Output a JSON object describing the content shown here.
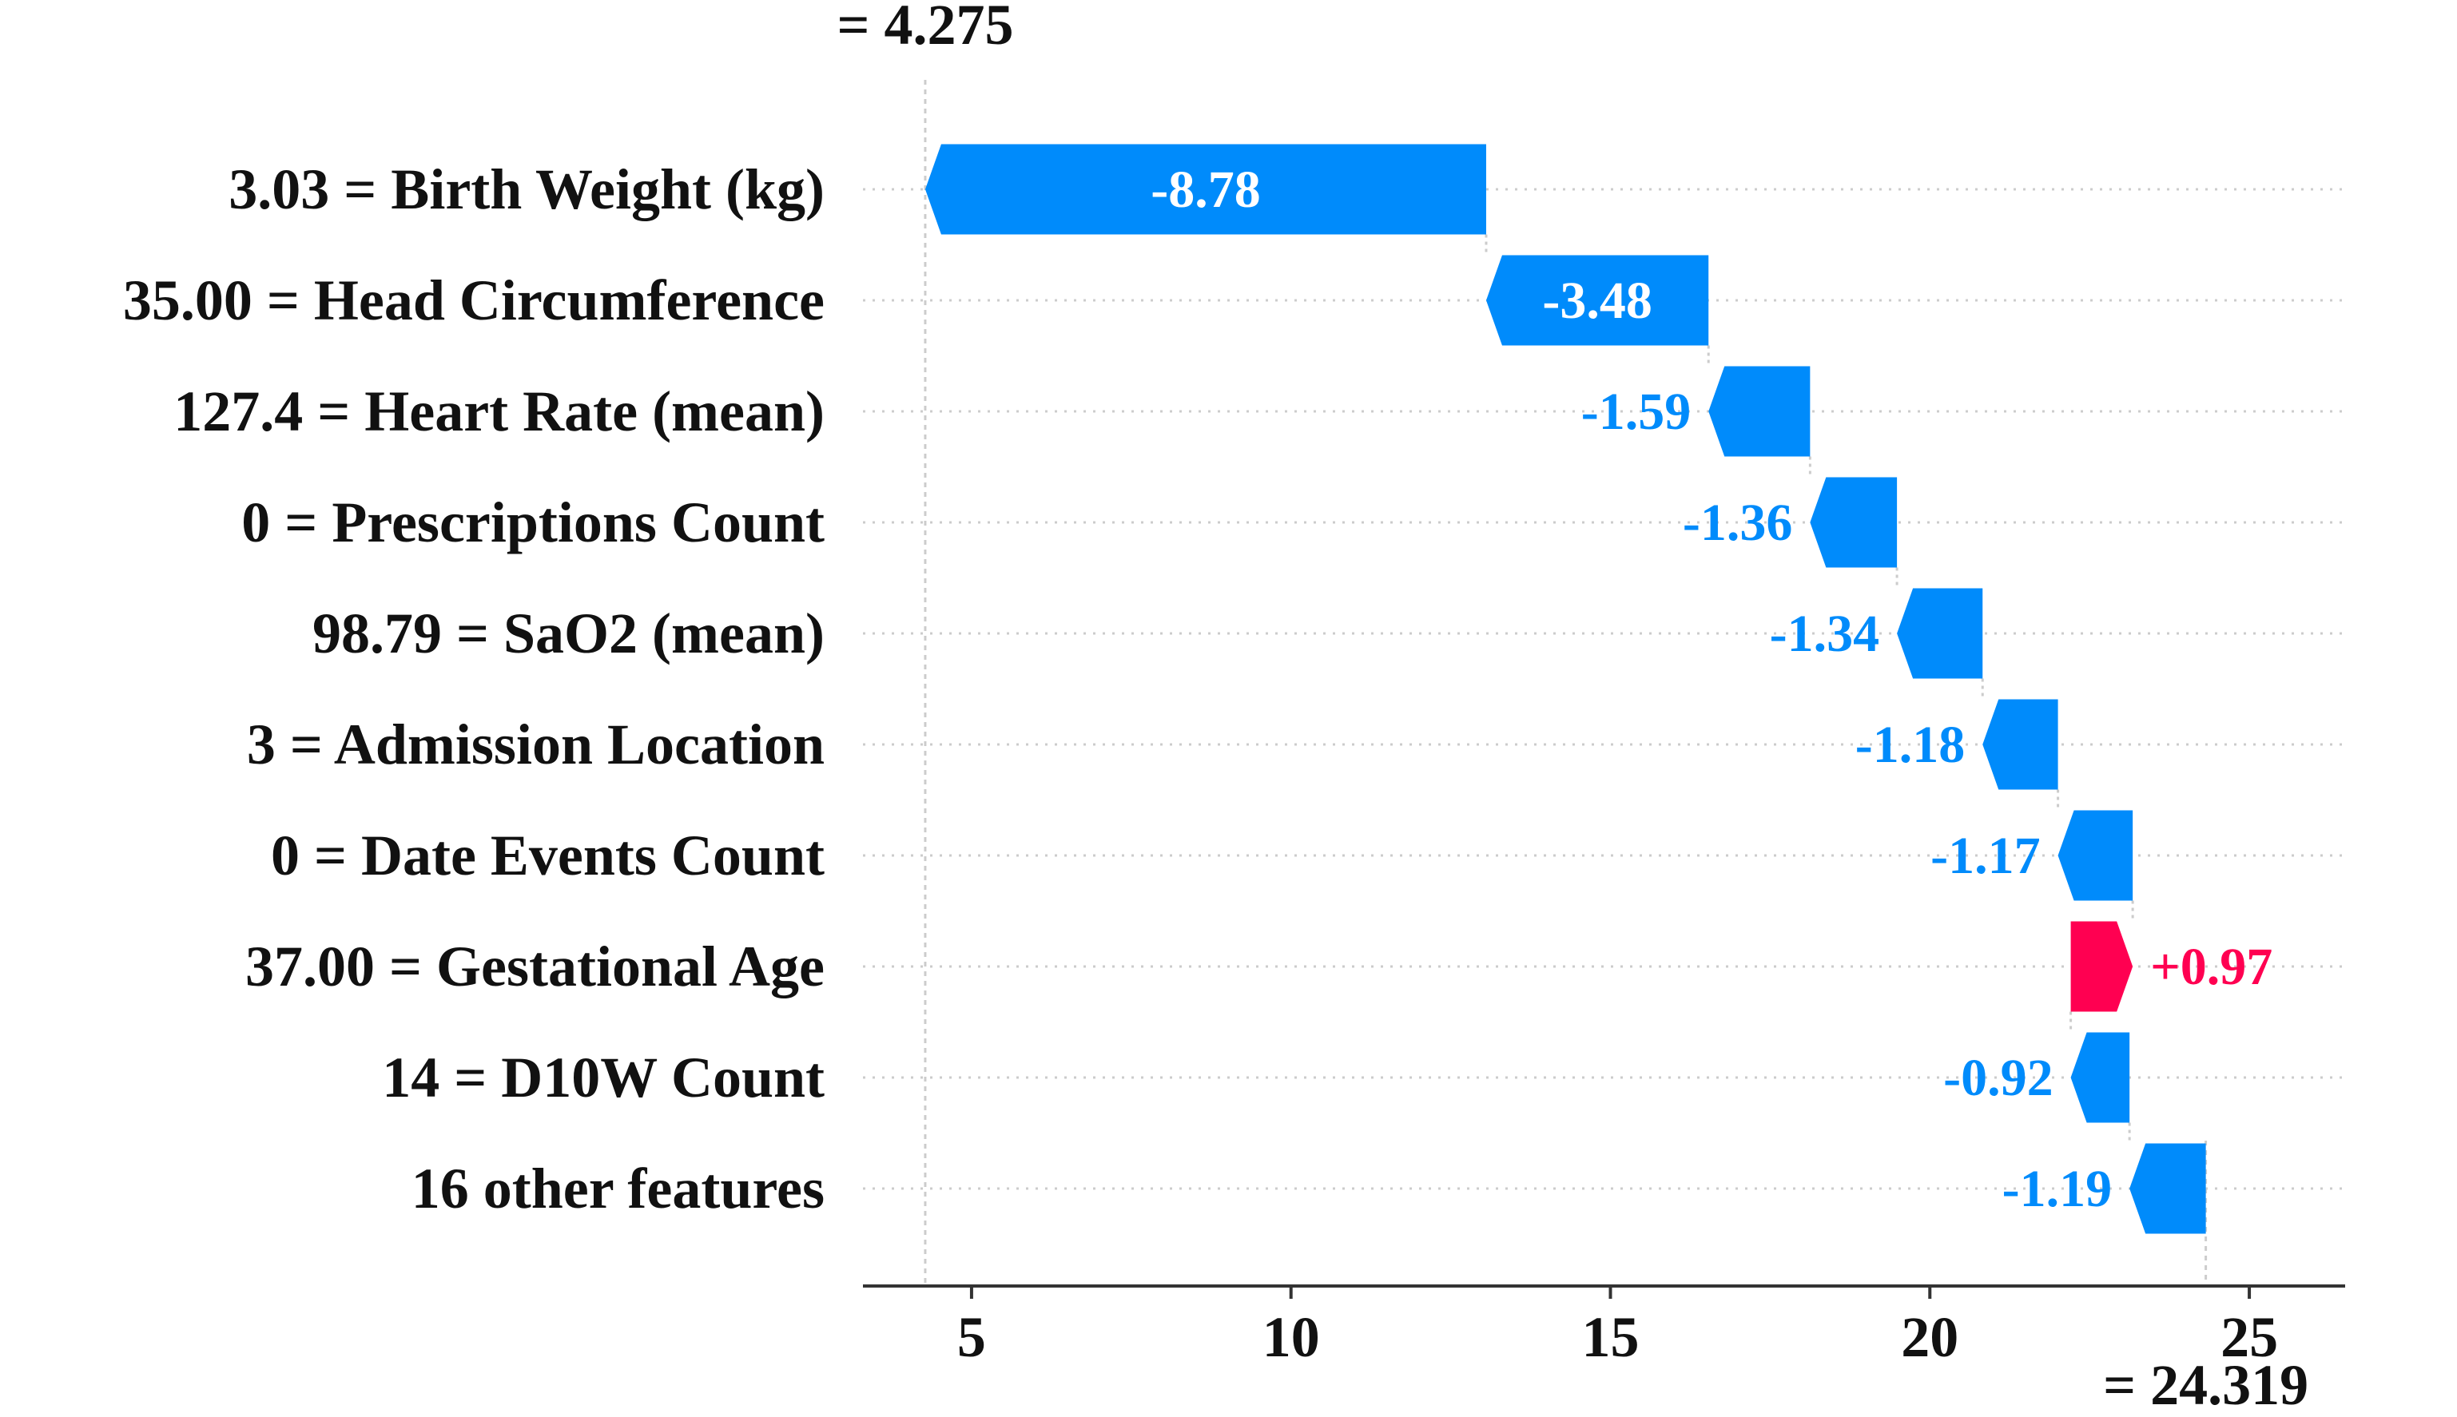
{
  "chart_data": {
    "type": "waterfall",
    "base_value": 4.275,
    "base_label": "= 4.275",
    "final_value": 24.319,
    "final_label": "= 24.319",
    "xlim": [
      3.3,
      26.5
    ],
    "xticks": [
      5,
      10,
      15,
      20,
      25
    ],
    "colors": {
      "negative": "#008bfb",
      "positive": "#ff0051",
      "axis": "#333333",
      "grid": "#cccccc"
    },
    "features": [
      {
        "label": "3.03 = Birth Weight (kg)",
        "start": 13.055,
        "end": 4.275,
        "value_label": "-8.78"
      },
      {
        "label": "35.00 = Head Circumference",
        "start": 16.535,
        "end": 13.055,
        "value_label": "-3.48"
      },
      {
        "label": "127.4 = Heart Rate (mean)",
        "start": 18.125,
        "end": 16.535,
        "value_label": "-1.59"
      },
      {
        "label": "0 = Prescriptions Count",
        "start": 19.485,
        "end": 18.125,
        "value_label": "-1.36"
      },
      {
        "label": "98.79 = SaO2 (mean)",
        "start": 20.825,
        "end": 19.485,
        "value_label": "-1.34"
      },
      {
        "label": "3 = Admission Location",
        "start": 22.005,
        "end": 20.825,
        "value_label": "-1.18"
      },
      {
        "label": "0 = Date Events Count",
        "start": 23.175,
        "end": 22.005,
        "value_label": "-1.17"
      },
      {
        "label": "37.00 = Gestational Age",
        "start": 22.205,
        "end": 23.175,
        "value_label": "+0.97"
      },
      {
        "label": "14 = D10W Count",
        "start": 23.125,
        "end": 22.205,
        "value_label": "-0.92"
      },
      {
        "label": "16 other features",
        "start": 24.319,
        "end": 23.125,
        "value_label": "-1.19"
      }
    ]
  }
}
